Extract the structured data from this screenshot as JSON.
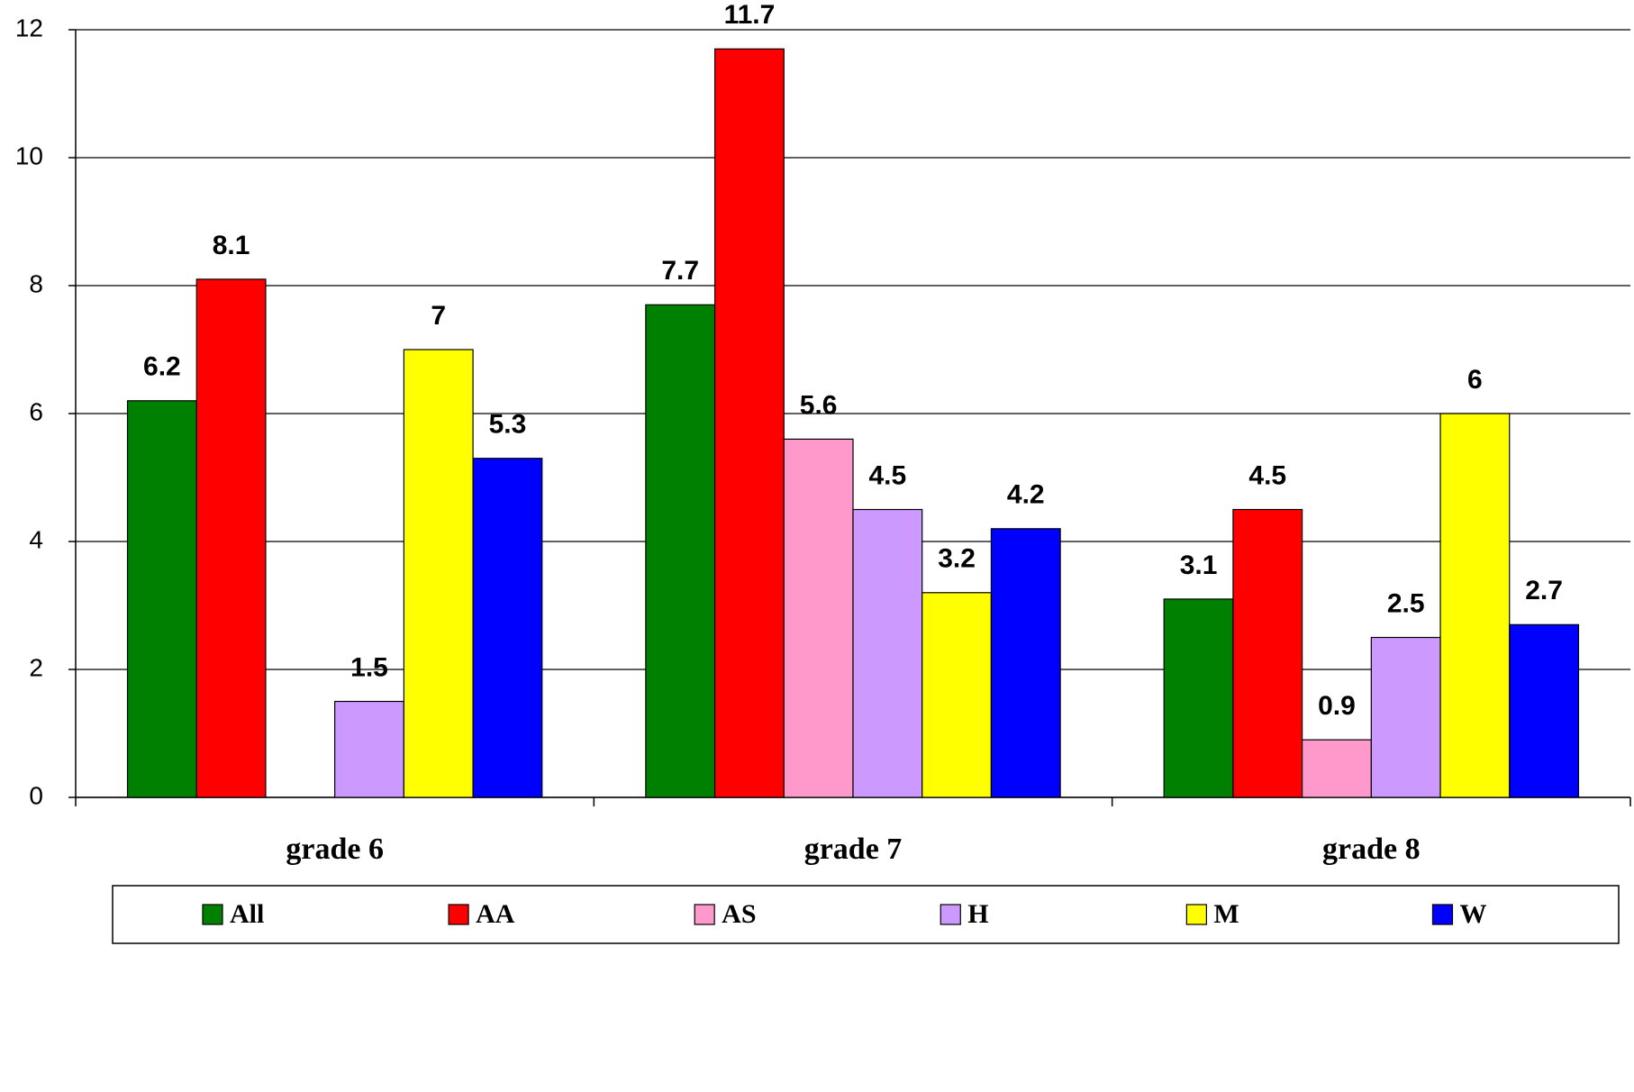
{
  "chart_data": {
    "type": "bar",
    "categories": [
      "grade 6",
      "grade 7",
      "grade 8"
    ],
    "series": [
      {
        "name": "All",
        "color": "#008000",
        "values": [
          6.2,
          7.7,
          3.1
        ]
      },
      {
        "name": "AA",
        "color": "#ff0000",
        "values": [
          8.1,
          11.7,
          4.5
        ]
      },
      {
        "name": "AS",
        "color": "#ff99cc",
        "values": [
          null,
          5.6,
          0.9
        ]
      },
      {
        "name": "H",
        "color": "#cc99ff",
        "values": [
          1.5,
          4.5,
          2.5
        ]
      },
      {
        "name": "M",
        "color": "#ffff00",
        "values": [
          7,
          3.2,
          6
        ]
      },
      {
        "name": "W",
        "color": "#0000ff",
        "values": [
          5.3,
          4.2,
          2.7
        ]
      }
    ],
    "ylim": [
      0,
      12
    ],
    "yticks": [
      0,
      2,
      4,
      6,
      8,
      10,
      12
    ],
    "grid": true,
    "legend": "bottom"
  }
}
